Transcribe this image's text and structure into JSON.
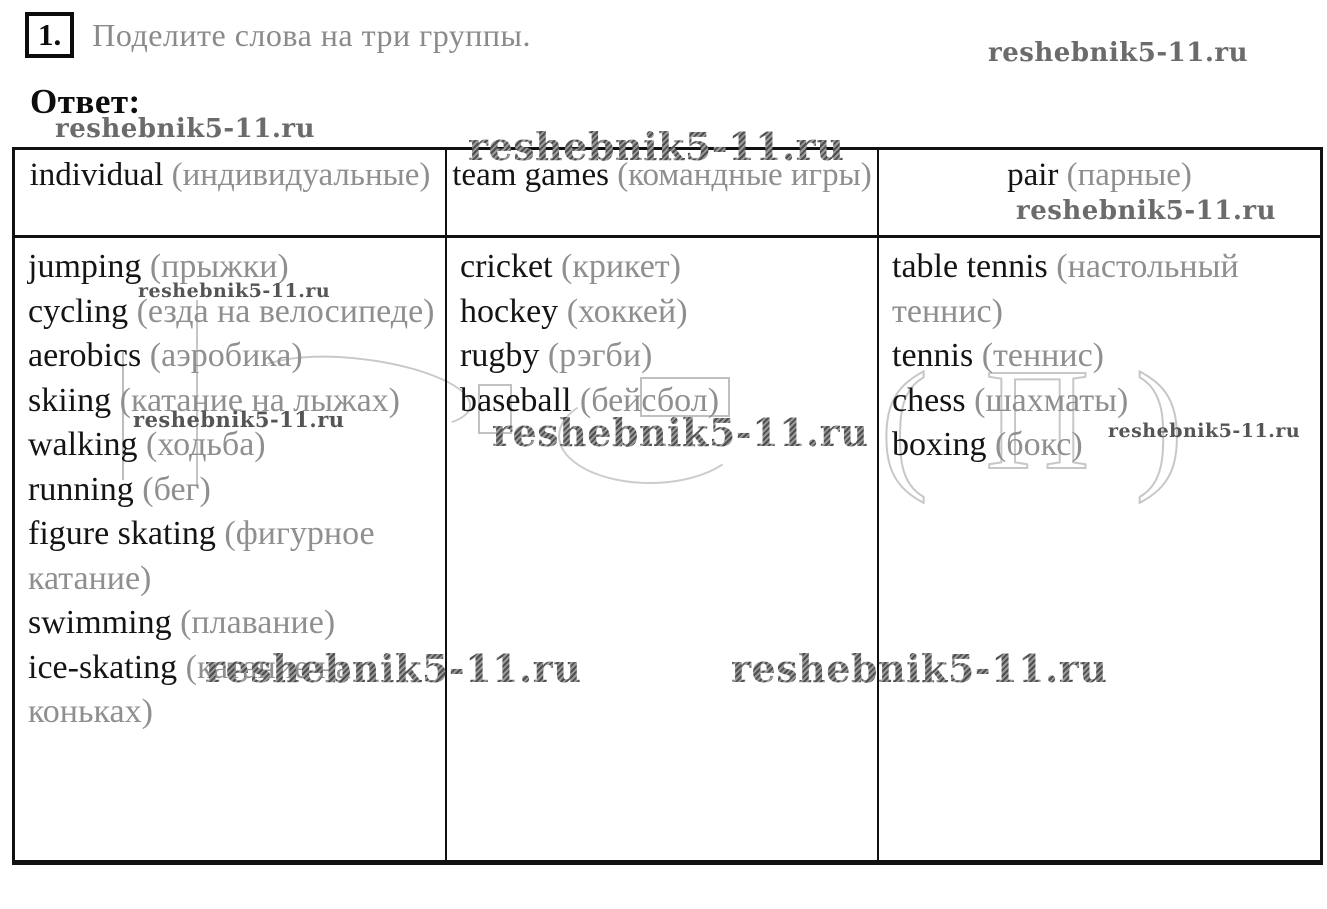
{
  "task": {
    "number": "1.",
    "text": "Поделите слова на три группы."
  },
  "answer_label": "Ответ:",
  "watermark": {
    "text": "reshebnik5-11.ru"
  },
  "table": {
    "columns": [
      {
        "header_en": "individual",
        "header_ru": "(индивидуальные)",
        "items": [
          {
            "en": "jumping",
            "ru": "(прыжки)"
          },
          {
            "en": "cycling",
            "ru": "(езда на велосипеде)"
          },
          {
            "en": "aerobics",
            "ru": "(аэробика)"
          },
          {
            "en": "skiing",
            "ru": "(катание на лыжах)"
          },
          {
            "en": "walking",
            "ru": "(ходьба)"
          },
          {
            "en": "running",
            "ru": "(бег)"
          },
          {
            "en": "figure skating",
            "ru": "(фигурное катание)"
          },
          {
            "en": "swimming",
            "ru": "(плавание)"
          },
          {
            "en": "ice-skating",
            "ru": "(катание на коньках)"
          }
        ]
      },
      {
        "header_en": "team games",
        "header_ru": "(командные игры)",
        "items": [
          {
            "en": "cricket",
            "ru": "(крикет)"
          },
          {
            "en": "hockey",
            "ru": "(хоккей)"
          },
          {
            "en": "rugby",
            "ru": "(рэгби)"
          },
          {
            "en": "baseball",
            "ru": "(бейсбол)"
          }
        ]
      },
      {
        "header_en": "pair",
        "header_ru": "(парные)",
        "items": [
          {
            "en": "table tennis",
            "ru": "(настольный теннис)"
          },
          {
            "en": "tennis",
            "ru": "(теннис)"
          },
          {
            "en": "chess",
            "ru": "(шахматы)"
          },
          {
            "en": "boxing",
            "ru": "(бокс)"
          }
        ]
      }
    ]
  },
  "background_glyphs": [
    "(",
    "П",
    ")"
  ]
}
